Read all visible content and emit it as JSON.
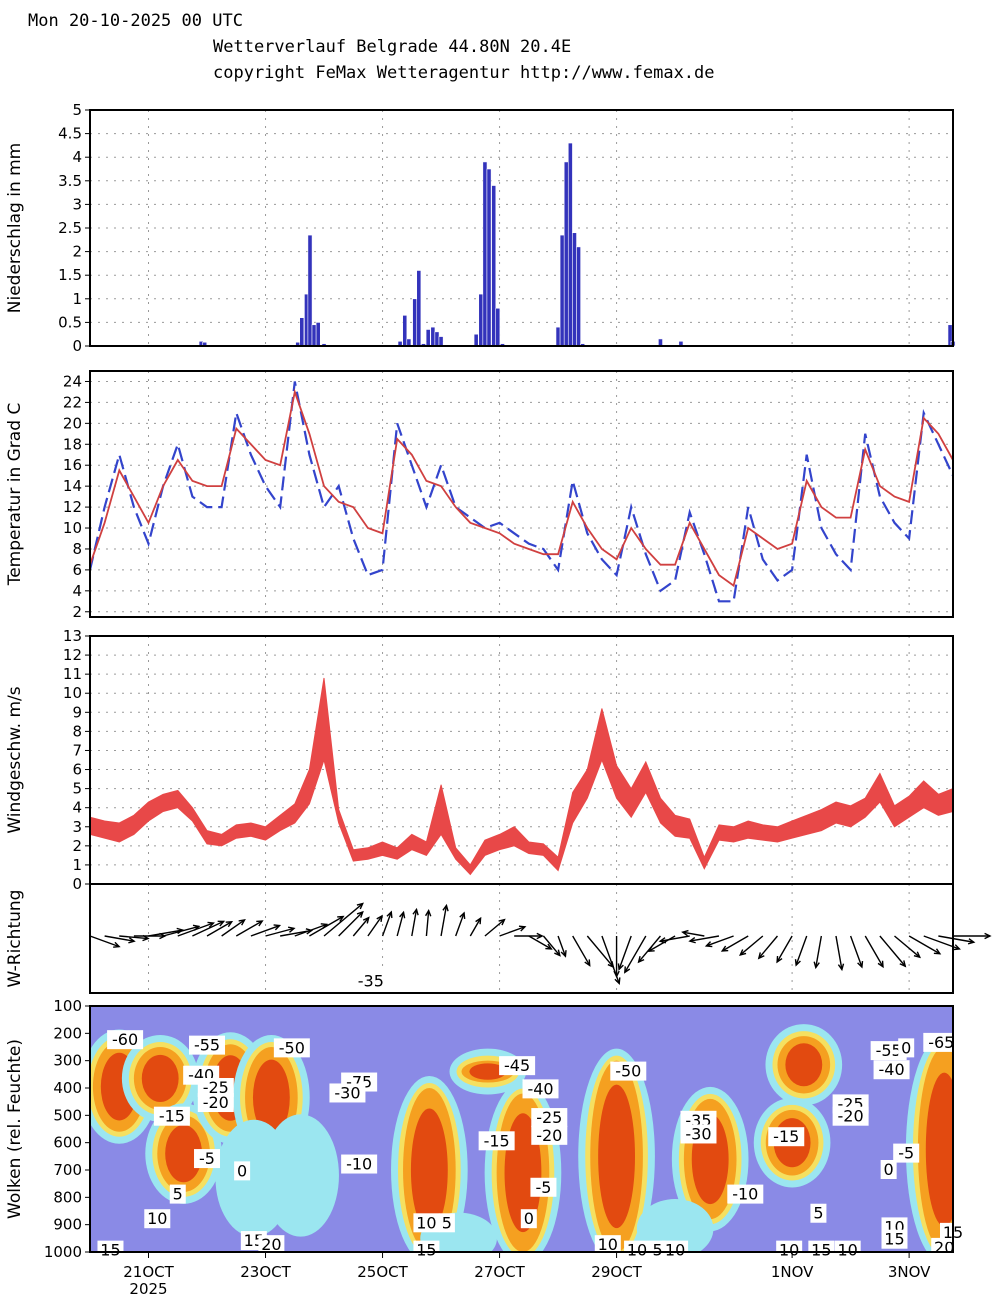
{
  "header": {
    "date_line": "Mon 20-10-2025 00 UTC",
    "title_line": "Wetterverlauf Belgrade  44.80N 20.4E",
    "copyright_line": "copyright FeMax Wetteragentur http://www.femax.de"
  },
  "colors": {
    "precip_bar": "#3333bb",
    "temp_solid": "#d04040",
    "temp_dashed": "#3344cc",
    "wind_band": "#e84848",
    "cloud_background": "#8a8ae6",
    "cloud_light": "#9be6f0",
    "cloud_mid": "#f5e060",
    "cloud_high": "#f5a020",
    "cloud_max": "#e24a10"
  },
  "time_axis": {
    "start": "20OCT 00UTC",
    "step_hours": 6,
    "tick_labels": [
      "21OCT",
      "23OCT",
      "25OCT",
      "27OCT",
      "29OCT",
      "1NOV",
      "3NOV"
    ],
    "tick_days": [
      1,
      3,
      5,
      7,
      9,
      12,
      14
    ],
    "year_label": "2025",
    "range_days": [
      0,
      14.75
    ]
  },
  "chart_data": [
    {
      "type": "bar",
      "ylabel": "Niederschlag in mm",
      "ylim": [
        0,
        5
      ],
      "yticks": [
        "0",
        "0.5",
        "1",
        "1.5",
        "2",
        "2.5",
        "3",
        "3.5",
        "4",
        "4.5",
        "5"
      ],
      "grid": true,
      "x_days": [
        1.9,
        1.96,
        3.55,
        3.62,
        3.7,
        3.76,
        3.83,
        3.9,
        4.0,
        5.3,
        5.38,
        5.45,
        5.55,
        5.62,
        5.7,
        5.78,
        5.86,
        5.93,
        6.0,
        6.6,
        6.68,
        6.75,
        6.82,
        6.9,
        6.97,
        7.05,
        8.0,
        8.07,
        8.14,
        8.21,
        8.28,
        8.35,
        8.42,
        8.5,
        9.75,
        10.1,
        14.7,
        14.75
      ],
      "values": [
        0.1,
        0.08,
        0.08,
        0.6,
        1.1,
        2.35,
        0.45,
        0.5,
        0.05,
        0.1,
        0.65,
        0.15,
        1.0,
        1.6,
        0.05,
        0.35,
        0.4,
        0.3,
        0.2,
        0.25,
        1.1,
        3.9,
        3.75,
        3.4,
        0.8,
        0.05,
        0.4,
        2.35,
        3.9,
        4.3,
        2.4,
        2.1,
        0.05,
        0.02,
        0.15,
        0.1,
        0.45,
        0.1
      ]
    },
    {
      "type": "line",
      "ylabel": "Temperatur in Grad C",
      "ylim": [
        1.5,
        25
      ],
      "yticks": [
        "2",
        "4",
        "6",
        "8",
        "10",
        "12",
        "14",
        "16",
        "18",
        "20",
        "22",
        "24"
      ],
      "grid": true,
      "x_days": [
        0,
        0.25,
        0.5,
        0.75,
        1,
        1.25,
        1.5,
        1.75,
        2,
        2.25,
        2.5,
        2.75,
        3,
        3.25,
        3.5,
        3.75,
        4,
        4.25,
        4.5,
        4.75,
        5,
        5.25,
        5.5,
        5.75,
        6,
        6.25,
        6.5,
        6.75,
        7,
        7.25,
        7.5,
        7.75,
        8,
        8.25,
        8.5,
        8.75,
        9,
        9.25,
        9.5,
        9.75,
        10,
        10.25,
        10.5,
        10.75,
        11,
        11.25,
        11.5,
        11.75,
        12,
        12.25,
        12.5,
        12.75,
        13,
        13.25,
        13.5,
        13.75,
        14,
        14.25,
        14.5,
        14.75
      ],
      "series": [
        {
          "values": [
            6.5,
            10.5,
            15.5,
            13,
            10.5,
            14,
            16.5,
            14.5,
            14,
            14,
            19.5,
            18,
            16.5,
            16,
            23,
            19,
            14,
            12.5,
            12,
            10,
            9.5,
            18.5,
            17,
            14.5,
            14,
            12,
            10.5,
            10,
            9.5,
            8.5,
            8,
            7.5,
            7.5,
            12.5,
            10,
            8,
            7,
            10,
            8,
            6.5,
            6.5,
            10.5,
            8,
            5.5,
            4.5,
            10,
            9,
            8,
            8.5,
            14.5,
            12,
            11,
            11,
            17.5,
            14,
            13,
            12.5,
            20.5,
            19,
            16.5
          ]
        },
        {
          "values": [
            6,
            12,
            17,
            12,
            8.5,
            14,
            18,
            13,
            12,
            12,
            21,
            17,
            14,
            12,
            24,
            17,
            12,
            14,
            9,
            5.5,
            6,
            20,
            16,
            12,
            16,
            12,
            11,
            10,
            10.5,
            9.5,
            8.5,
            8,
            6,
            14.5,
            9.5,
            7,
            5.5,
            12,
            7.5,
            4,
            5,
            11.5,
            7.5,
            3,
            3,
            12,
            7,
            5,
            6,
            17,
            10,
            7.5,
            6,
            19,
            13,
            10.5,
            9,
            21,
            18,
            15
          ]
        }
      ]
    },
    {
      "type": "area",
      "ylabel": "Windgeschw. m/s",
      "ylim": [
        0,
        13
      ],
      "yticks": [
        "0",
        "1",
        "2",
        "3",
        "4",
        "5",
        "6",
        "7",
        "8",
        "9",
        "10",
        "11",
        "12",
        "13"
      ],
      "grid": true,
      "x_days": [
        0,
        0.25,
        0.5,
        0.75,
        1,
        1.25,
        1.5,
        1.75,
        2,
        2.25,
        2.5,
        2.75,
        3,
        3.25,
        3.5,
        3.75,
        4,
        4.25,
        4.5,
        4.75,
        5,
        5.25,
        5.5,
        5.75,
        6,
        6.25,
        6.5,
        6.75,
        7,
        7.25,
        7.5,
        7.75,
        8,
        8.25,
        8.5,
        8.75,
        9,
        9.25,
        9.5,
        9.75,
        10,
        10.25,
        10.5,
        10.75,
        11,
        11.25,
        11.5,
        11.75,
        12,
        12.25,
        12.5,
        12.75,
        13,
        13.25,
        13.5,
        13.75,
        14,
        14.25,
        14.5,
        14.75
      ],
      "series": [
        {
          "name": "",
          "values": [
            2.6,
            2.4,
            2.2,
            2.6,
            3.3,
            3.8,
            4.0,
            3.3,
            2.1,
            2.0,
            2.4,
            2.5,
            2.3,
            2.8,
            3.2,
            4.2,
            6.5,
            3.2,
            1.2,
            1.3,
            1.5,
            1.3,
            1.8,
            1.5,
            2.6,
            1.3,
            0.5,
            1.5,
            1.8,
            2.0,
            1.6,
            1.5,
            0.7,
            3.2,
            4.5,
            6.5,
            4.5,
            3.5,
            4.8,
            3.2,
            2.5,
            2.4,
            0.8,
            2.3,
            2.2,
            2.4,
            2.3,
            2.2,
            2.4,
            2.6,
            2.8,
            3.2,
            3.0,
            3.5,
            4.3,
            3.0,
            3.5,
            4.0,
            3.6,
            3.8
          ]
        },
        {
          "name": "",
          "values": [
            3.5,
            3.3,
            3.2,
            3.6,
            4.3,
            4.7,
            4.9,
            4.0,
            2.8,
            2.6,
            3.1,
            3.2,
            3.0,
            3.6,
            4.2,
            6.0,
            10.8,
            3.9,
            1.8,
            1.9,
            2.2,
            1.9,
            2.6,
            2.2,
            5.2,
            1.9,
            1.0,
            2.3,
            2.6,
            3.0,
            2.2,
            2.1,
            1.4,
            4.8,
            6.0,
            9.2,
            6.2,
            5.0,
            6.4,
            4.5,
            3.6,
            3.4,
            1.4,
            3.1,
            3.0,
            3.3,
            3.1,
            3.0,
            3.3,
            3.6,
            3.9,
            4.3,
            4.1,
            4.5,
            5.8,
            4.1,
            4.6,
            5.4,
            4.7,
            5.0
          ]
        }
      ]
    },
    {
      "type": "scatter",
      "ylabel": "W-Richtung",
      "arrow_every_hours": 3,
      "directions_deg": [
        290,
        280,
        275,
        270,
        260,
        255,
        250,
        245,
        240,
        235,
        240,
        250,
        255,
        260,
        250,
        240,
        230,
        225,
        220,
        215,
        200,
        195,
        190,
        185,
        190,
        200,
        210,
        230,
        250,
        270,
        300,
        320,
        340,
        330,
        320,
        340,
        0,
        20,
        30,
        40,
        60,
        80,
        100,
        80,
        70,
        60,
        50,
        40,
        30,
        20,
        10,
        350,
        340,
        330,
        320,
        310,
        300,
        290,
        280,
        270
      ],
      "speeds": [
        2.6,
        2.4,
        2.2,
        2.6,
        3.3,
        3.8,
        4.0,
        3.3,
        2.1,
        2.0,
        2.4,
        2.5,
        2.3,
        2.8,
        3.2,
        4.2,
        6.5,
        3.2,
        1.2,
        1.3,
        1.5,
        1.3,
        1.8,
        1.5,
        2.6,
        1.3,
        0.5,
        1.5,
        1.8,
        2.0,
        1.6,
        1.5,
        0.7,
        3.2,
        4.5,
        6.5,
        4.5,
        3.5,
        4.8,
        3.2,
        2.5,
        2.4,
        0.8,
        2.3,
        2.2,
        2.4,
        2.3,
        2.2,
        2.4,
        2.6,
        2.8,
        3.2,
        3.0,
        3.5,
        4.3,
        3.0,
        3.5,
        4.0,
        3.6,
        3.8
      ]
    },
    {
      "type": "heatmap",
      "ylabel": "Wolken (rel. Feuchte)",
      "ylim": [
        1000,
        100
      ],
      "yticks": [
        "100",
        "200",
        "300",
        "400",
        "500",
        "600",
        "700",
        "800",
        "900",
        "1000"
      ],
      "cloud_cells": [
        {
          "day": 0.5,
          "p_top": 230,
          "p_bottom": 560,
          "level": 3
        },
        {
          "day": 1.2,
          "p_top": 250,
          "p_bottom": 480,
          "level": 3
        },
        {
          "day": 1.6,
          "p_top": 500,
          "p_bottom": 780,
          "level": 3
        },
        {
          "day": 2.4,
          "p_top": 240,
          "p_bottom": 560,
          "level": 3
        },
        {
          "day": 3.1,
          "p_top": 250,
          "p_bottom": 620,
          "level": 3
        },
        {
          "day": 2.8,
          "p_top": 560,
          "p_bottom": 900,
          "level": 1
        },
        {
          "day": 3.6,
          "p_top": 540,
          "p_bottom": 900,
          "level": 1
        },
        {
          "day": 5.8,
          "p_top": 400,
          "p_bottom": 1000,
          "level": 3
        },
        {
          "day": 6.8,
          "p_top": 300,
          "p_bottom": 380,
          "level": 3
        },
        {
          "day": 7.4,
          "p_top": 420,
          "p_bottom": 1000,
          "level": 3
        },
        {
          "day": 9.0,
          "p_top": 300,
          "p_bottom": 1000,
          "level": 3
        },
        {
          "day": 10.6,
          "p_top": 440,
          "p_bottom": 880,
          "level": 3
        },
        {
          "day": 12.2,
          "p_top": 210,
          "p_bottom": 420,
          "level": 3
        },
        {
          "day": 12.0,
          "p_top": 480,
          "p_bottom": 720,
          "level": 3
        },
        {
          "day": 14.6,
          "p_top": 250,
          "p_bottom": 1000,
          "level": 3
        },
        {
          "day": 6.3,
          "p_top": 900,
          "p_bottom": 1000,
          "level": 1
        },
        {
          "day": 10.0,
          "p_top": 850,
          "p_bottom": 980,
          "level": 1
        }
      ],
      "temperature_labels": [
        {
          "text": "-60",
          "day": 0.6,
          "p": 225
        },
        {
          "text": "-55",
          "day": 2.0,
          "p": 245
        },
        {
          "text": "-50",
          "day": 3.45,
          "p": 255
        },
        {
          "text": "-40",
          "day": 1.9,
          "p": 355
        },
        {
          "text": "-25",
          "day": 2.15,
          "p": 400
        },
        {
          "text": "-20",
          "day": 2.15,
          "p": 455
        },
        {
          "text": "-15",
          "day": 1.4,
          "p": 505
        },
        {
          "text": "-5",
          "day": 2.0,
          "p": 660
        },
        {
          "text": "0",
          "day": 2.6,
          "p": 705
        },
        {
          "text": "5",
          "day": 1.5,
          "p": 790
        },
        {
          "text": "10",
          "day": 1.15,
          "p": 880
        },
        {
          "text": "15",
          "day": 0.35,
          "p": 995
        },
        {
          "text": "15",
          "day": 2.8,
          "p": 960
        },
        {
          "text": "20",
          "day": 3.1,
          "p": 975
        },
        {
          "text": "-35",
          "day": 4.8,
          "p": 10
        },
        {
          "text": "-75",
          "day": 4.6,
          "p": 380
        },
        {
          "text": "-30",
          "day": 4.4,
          "p": 420
        },
        {
          "text": "-10",
          "day": 4.6,
          "p": 680
        },
        {
          "text": "-45",
          "day": 7.3,
          "p": 320
        },
        {
          "text": "-40",
          "day": 7.7,
          "p": 405
        },
        {
          "text": "-50",
          "day": 9.2,
          "p": 340
        },
        {
          "text": "-25",
          "day": 7.85,
          "p": 510
        },
        {
          "text": "-20",
          "day": 7.85,
          "p": 575
        },
        {
          "text": "-15",
          "day": 6.95,
          "p": 595
        },
        {
          "text": "-5",
          "day": 7.75,
          "p": 765
        },
        {
          "text": "0",
          "day": 7.5,
          "p": 880
        },
        {
          "text": "10",
          "day": 5.75,
          "p": 895
        },
        {
          "text": "5",
          "day": 6.1,
          "p": 895
        },
        {
          "text": "15",
          "day": 5.75,
          "p": 995
        },
        {
          "text": "10",
          "day": 8.85,
          "p": 975
        },
        {
          "text": "10",
          "day": 9.35,
          "p": 995
        },
        {
          "text": "5",
          "day": 9.7,
          "p": 995
        },
        {
          "text": "10",
          "day": 10.0,
          "p": 995
        },
        {
          "text": "-35",
          "day": 10.4,
          "p": 520
        },
        {
          "text": "-30",
          "day": 10.4,
          "p": 570
        },
        {
          "text": "-10",
          "day": 11.2,
          "p": 790
        },
        {
          "text": "-15",
          "day": 11.9,
          "p": 580
        },
        {
          "text": "5",
          "day": 12.45,
          "p": 860
        },
        {
          "text": "10",
          "day": 11.95,
          "p": 995
        },
        {
          "text": "15",
          "day": 12.5,
          "p": 995
        },
        {
          "text": "10",
          "day": 12.95,
          "p": 995
        },
        {
          "text": "-55",
          "day": 13.65,
          "p": 265
        },
        {
          "text": "0",
          "day": 13.95,
          "p": 255
        },
        {
          "text": "-65",
          "day": 14.55,
          "p": 235
        },
        {
          "text": "-40",
          "day": 13.7,
          "p": 335
        },
        {
          "text": "-25",
          "day": 13.0,
          "p": 460
        },
        {
          "text": "-20",
          "day": 13.0,
          "p": 505
        },
        {
          "text": "-5",
          "day": 13.95,
          "p": 640
        },
        {
          "text": "0",
          "day": 13.65,
          "p": 700
        },
        {
          "text": "10",
          "day": 13.75,
          "p": 910
        },
        {
          "text": "15",
          "day": 13.75,
          "p": 955
        },
        {
          "text": "20",
          "day": 14.6,
          "p": 985
        },
        {
          "text": "15",
          "day": 14.75,
          "p": 930
        }
      ]
    }
  ]
}
